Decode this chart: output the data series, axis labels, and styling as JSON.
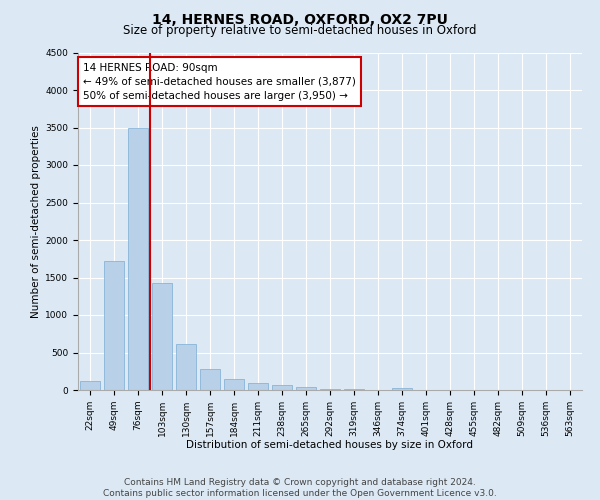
{
  "title": "14, HERNES ROAD, OXFORD, OX2 7PU",
  "subtitle": "Size of property relative to semi-detached houses in Oxford",
  "xlabel": "Distribution of semi-detached houses by size in Oxford",
  "ylabel": "Number of semi-detached properties",
  "categories": [
    "22sqm",
    "49sqm",
    "76sqm",
    "103sqm",
    "130sqm",
    "157sqm",
    "184sqm",
    "211sqm",
    "238sqm",
    "265sqm",
    "292sqm",
    "319sqm",
    "346sqm",
    "374sqm",
    "401sqm",
    "428sqm",
    "455sqm",
    "482sqm",
    "509sqm",
    "536sqm",
    "563sqm"
  ],
  "values": [
    120,
    1720,
    3500,
    1430,
    620,
    280,
    150,
    90,
    70,
    40,
    20,
    10,
    5,
    30,
    2,
    2,
    2,
    2,
    2,
    2,
    2
  ],
  "bar_color": "#b8d0e8",
  "bar_edge_color": "#7aadd4",
  "vline_color": "#cc0000",
  "annotation_text": "14 HERNES ROAD: 90sqm\n← 49% of semi-detached houses are smaller (3,877)\n50% of semi-detached houses are larger (3,950) →",
  "annotation_box_color": "#ffffff",
  "annotation_box_edge": "#cc0000",
  "ylim": [
    0,
    4500
  ],
  "yticks": [
    0,
    500,
    1000,
    1500,
    2000,
    2500,
    3000,
    3500,
    4000,
    4500
  ],
  "footer": "Contains HM Land Registry data © Crown copyright and database right 2024.\nContains public sector information licensed under the Open Government Licence v3.0.",
  "bg_color": "#dce9f5",
  "plot_bg_color": "#dce9f5",
  "grid_color": "#ffffff",
  "title_fontsize": 10,
  "subtitle_fontsize": 8.5,
  "axis_label_fontsize": 7.5,
  "tick_fontsize": 6.5,
  "annotation_fontsize": 7.5,
  "footer_fontsize": 6.5
}
